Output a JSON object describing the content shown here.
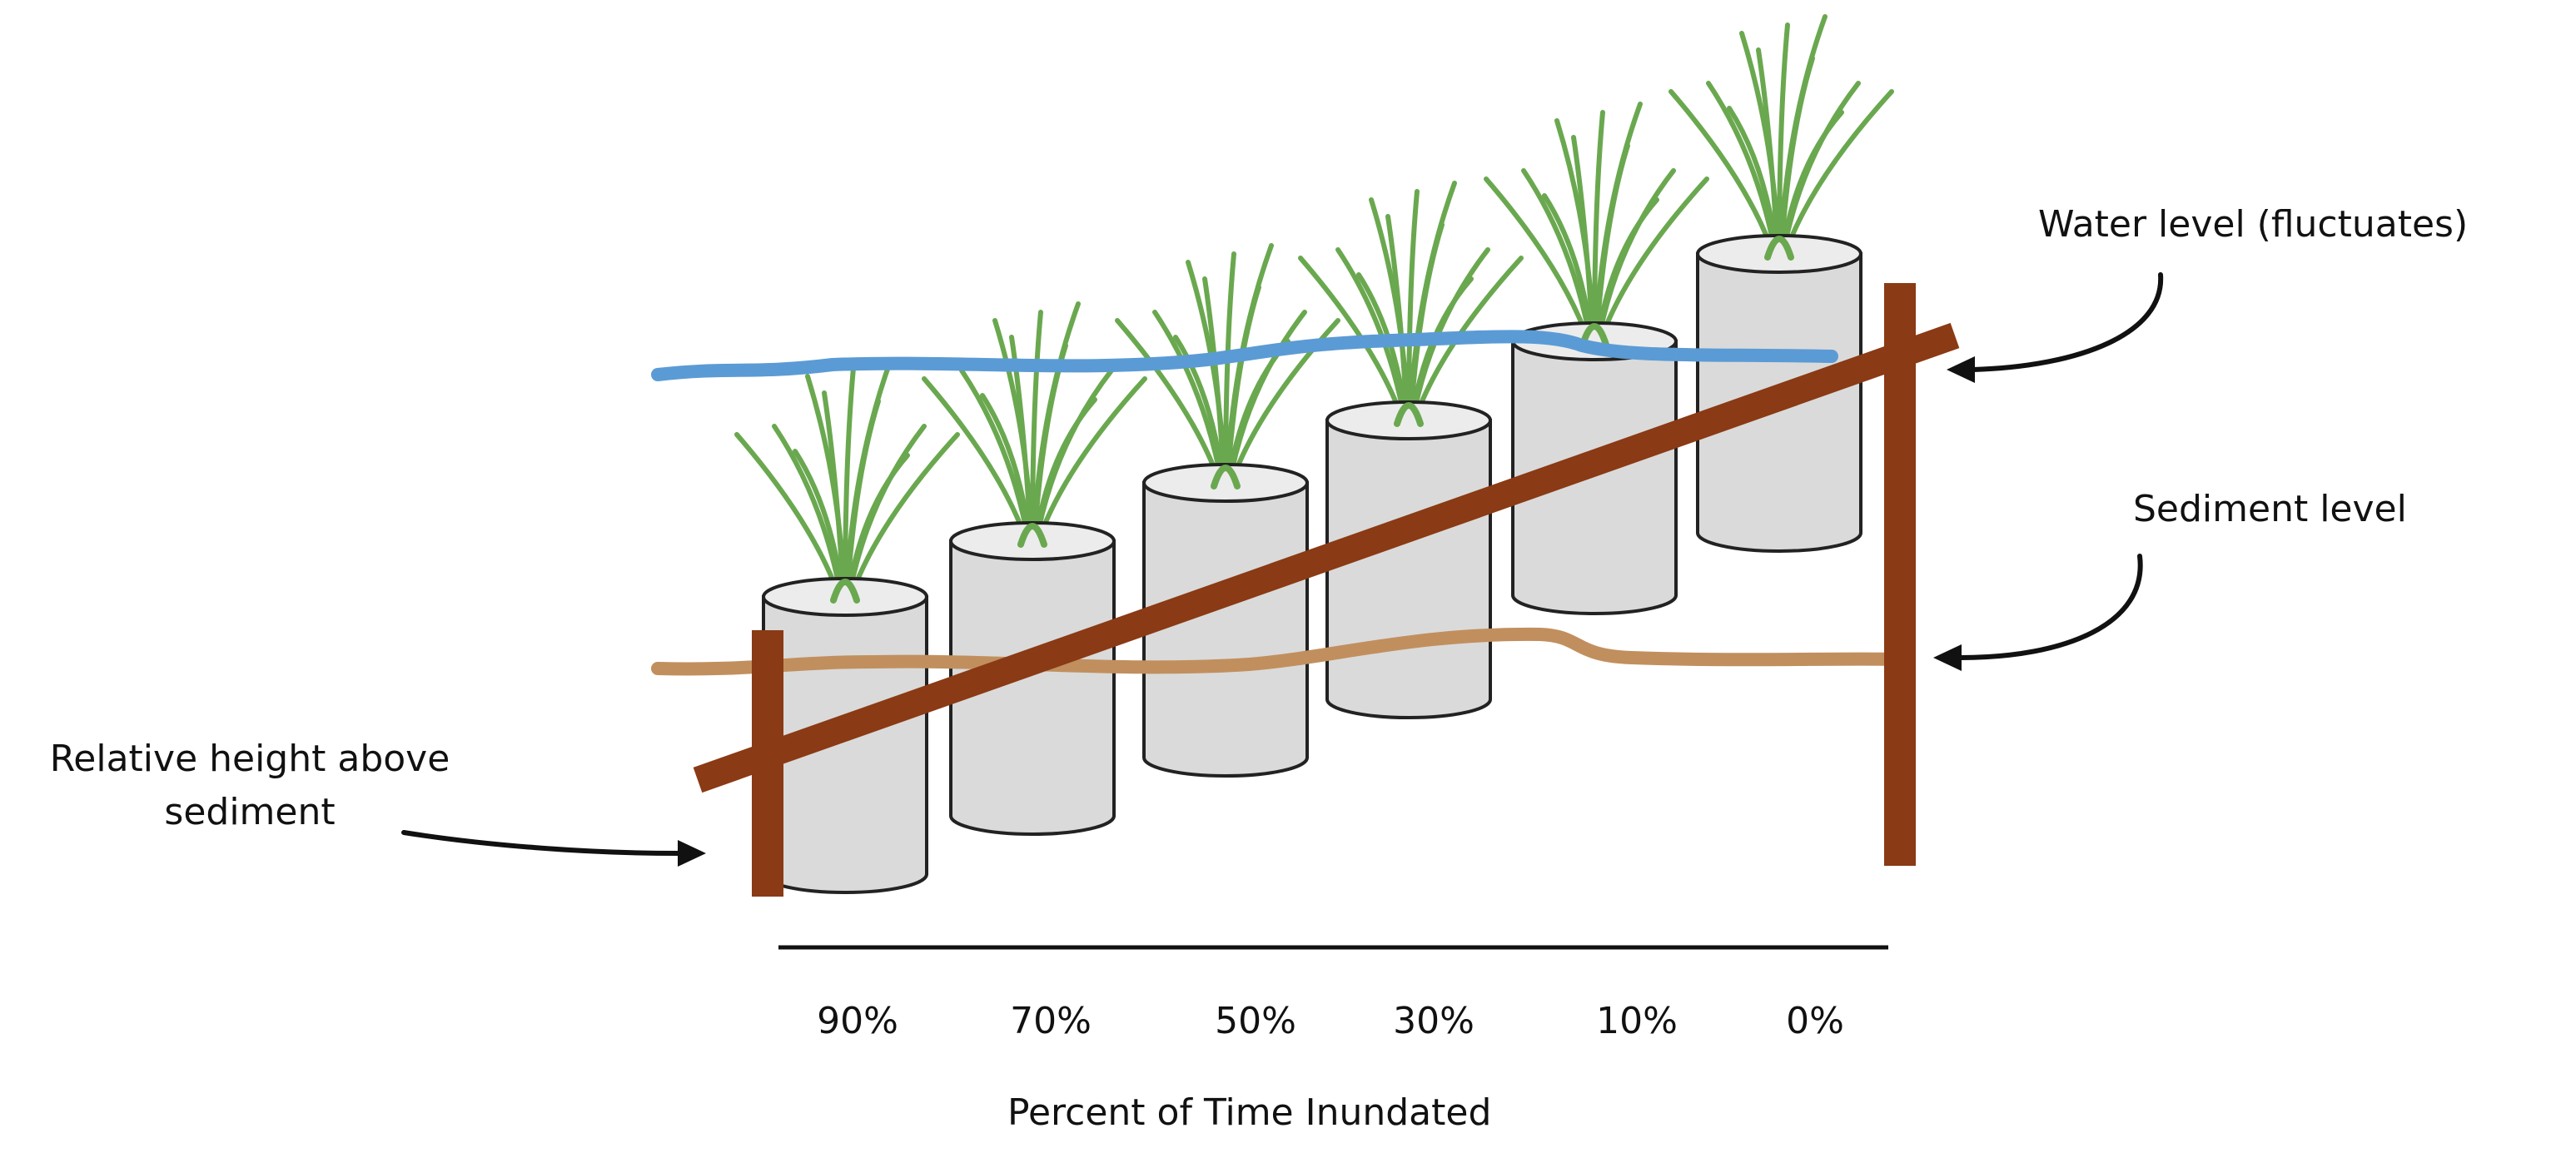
{
  "colors": {
    "water": "#5b9bd5",
    "sediment": "#c18f5e",
    "stake": "#8a3a14",
    "cylinder_fill": "#dadada",
    "cylinder_stroke": "#222222",
    "grass": "#6aa84f",
    "text": "#111111"
  },
  "labels": {
    "water_level": "Water level (fluctuates)",
    "sediment_level": "Sediment level",
    "relative_height_line1": "Relative height above",
    "relative_height_line2": "sediment",
    "x_axis_title": "Percent of Time Inundated"
  },
  "x_axis": {
    "ticks": [
      "90%",
      "70%",
      "50%",
      "30%",
      "10%",
      "0%"
    ]
  },
  "cylinders": [
    {
      "inundation": "90%"
    },
    {
      "inundation": "70%"
    },
    {
      "inundation": "50%"
    },
    {
      "inundation": "30%"
    },
    {
      "inundation": "10%"
    },
    {
      "inundation": "0%"
    }
  ],
  "icons": {
    "arrow": "curved-arrow-icon",
    "plant": "grass-tuft-icon"
  }
}
